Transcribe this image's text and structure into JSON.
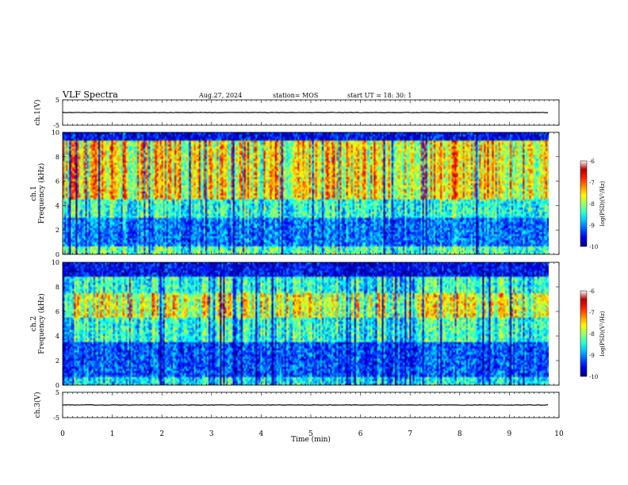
{
  "header": {
    "title": "VLF Spectra",
    "date": "Aug.27, 2024",
    "station": "station= MOS",
    "start_ut": "start  UT  =   18: 30: 1"
  },
  "chart_data": [
    {
      "type": "line",
      "panel": "ch1-voltage",
      "ylabel": "ch.1(V)",
      "ylim": [
        -5,
        5
      ],
      "yticks": [
        "5",
        "-5"
      ],
      "xlim": [
        0,
        10
      ],
      "series": [
        {
          "x": [
            0,
            9.8
          ],
          "y": [
            0,
            0
          ]
        }
      ]
    },
    {
      "type": "heatmap",
      "panel": "ch1-spectrogram",
      "ylabel": "ch.1\nFrequency (kHz)",
      "ylim": [
        0,
        10
      ],
      "yticks": [
        "0",
        "2",
        "4",
        "6",
        "8",
        "10"
      ],
      "xlim": [
        0,
        10
      ],
      "data_xmax": 9.8,
      "intense_band_khz": [
        4.5,
        9.3
      ],
      "colorbar": {
        "label": "log(PSD)(V²/Hz)",
        "ticks": [
          "-6",
          "-7",
          "-8",
          "-9",
          "-10"
        ],
        "range": [
          -10,
          -6
        ]
      }
    },
    {
      "type": "heatmap",
      "panel": "ch2-spectrogram",
      "ylabel": "ch.2\nFrequency (kHz)",
      "ylim": [
        0,
        10
      ],
      "yticks": [
        "0",
        "2",
        "4",
        "6",
        "8",
        "10"
      ],
      "xlim": [
        0,
        10
      ],
      "data_xmax": 9.8,
      "intense_band_khz": [
        5.5,
        7.5
      ],
      "colorbar": {
        "label": "log(PSD)(V²/Hz)",
        "ticks": [
          "-6",
          "-7",
          "-8",
          "-9",
          "-10"
        ],
        "range": [
          -10,
          -6
        ]
      }
    },
    {
      "type": "line",
      "panel": "ch3-voltage",
      "ylabel": "ch.3(V)",
      "ylim": [
        -5,
        5
      ],
      "yticks": [
        "5",
        "-5"
      ],
      "xlim": [
        0,
        10
      ],
      "series": [
        {
          "x": [
            0,
            9.8
          ],
          "y": [
            0,
            0
          ]
        }
      ]
    }
  ],
  "xaxis": {
    "label": "Time (min)",
    "ticks": [
      "0",
      "1",
      "2",
      "3",
      "4",
      "5",
      "6",
      "7",
      "8",
      "9",
      "10"
    ]
  }
}
